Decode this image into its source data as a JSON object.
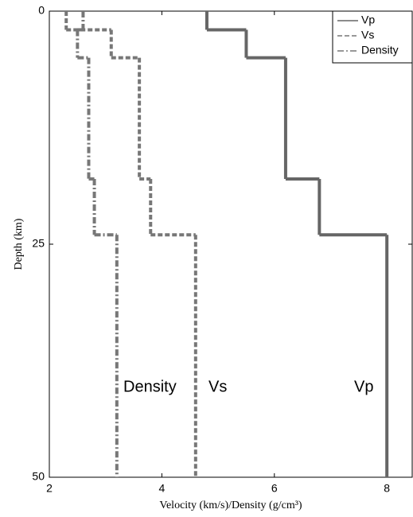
{
  "chart_data": {
    "type": "step-profile",
    "xlabel": "Velocity (km/s)/Density (g/cm³)",
    "ylabel": "Depth (km)",
    "layer_bounds": [
      0,
      2,
      5,
      18,
      24,
      50
    ],
    "series": [
      {
        "name": "Vp",
        "color": "#666666",
        "dash": "solid",
        "values": [
          4.8,
          5.5,
          6.2,
          6.8,
          8.0
        ]
      },
      {
        "name": "Vs",
        "color": "#777777",
        "dash": "dashed",
        "values": [
          2.3,
          3.1,
          3.6,
          3.8,
          4.6
        ]
      },
      {
        "name": "Density",
        "color": "#777777",
        "dash": "dashdot",
        "values": [
          2.6,
          2.5,
          2.7,
          2.8,
          3.2
        ]
      }
    ],
    "annotations": [
      "Density",
      "Vs",
      "Vp"
    ],
    "xlim": [
      2,
      8.45
    ],
    "xticks": [
      2,
      4,
      6,
      8
    ],
    "ylim": [
      0,
      50
    ],
    "yticks": [
      0,
      25,
      50
    ],
    "y_inverted": true,
    "legend": "upper right"
  }
}
